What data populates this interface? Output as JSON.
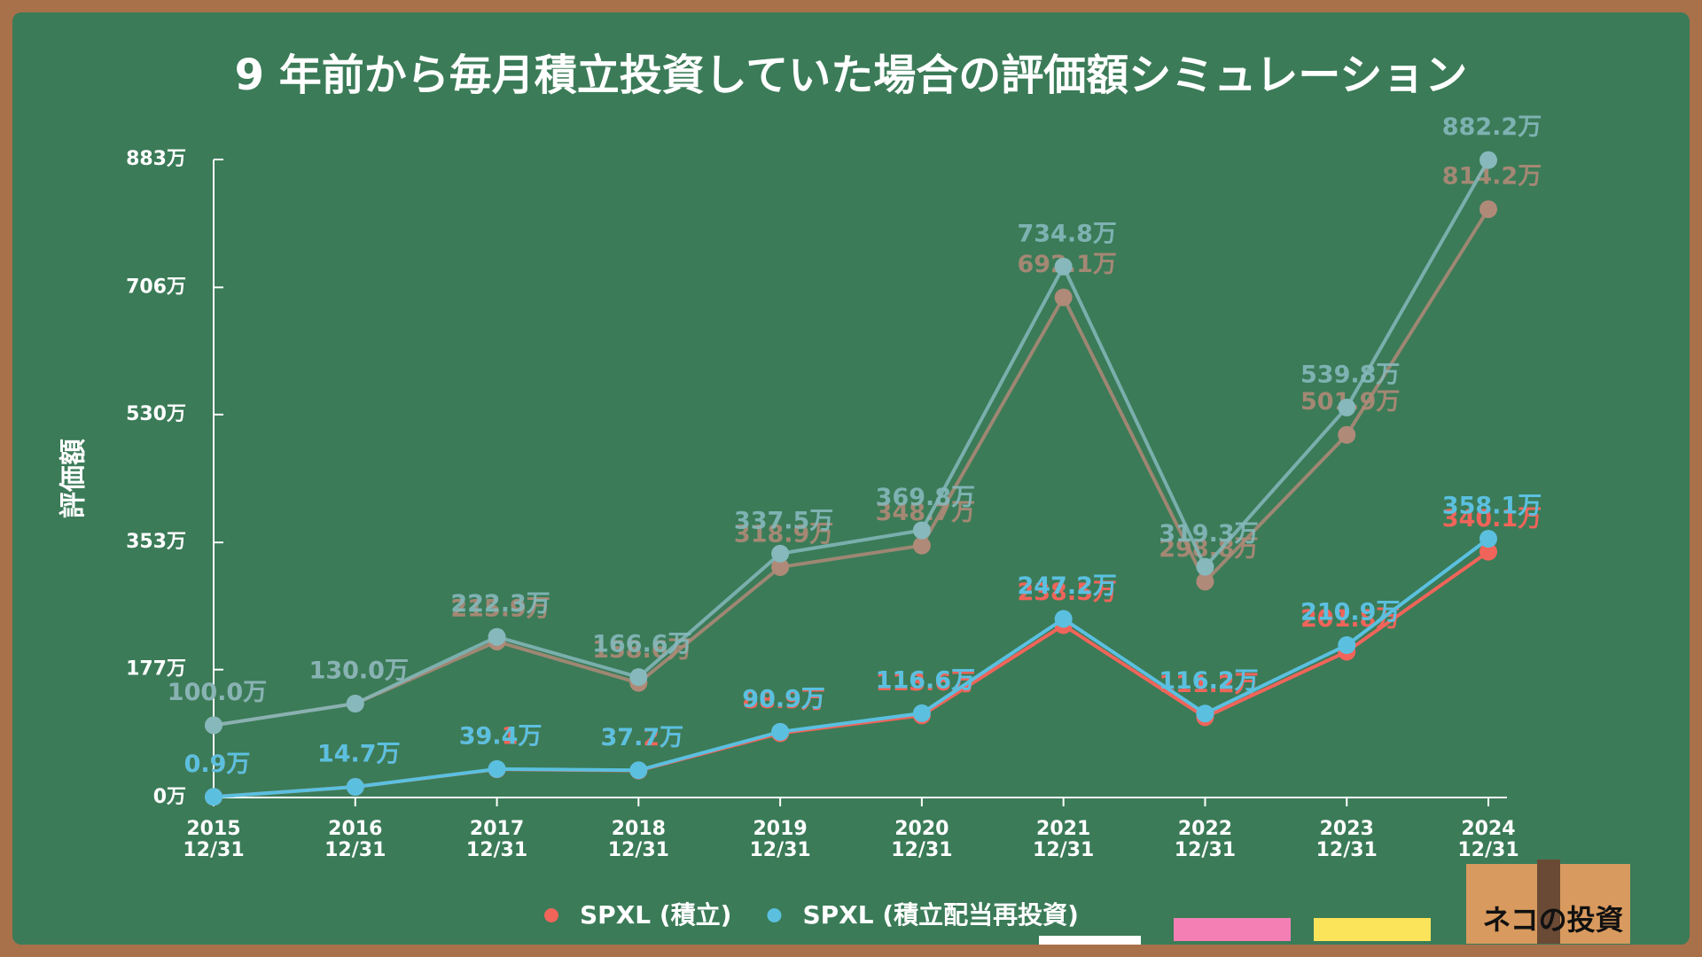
{
  "chart_data": {
    "type": "line",
    "title": "9 年前から毎月積立投資していた場合の評価額シミュレーション",
    "y_label": "評価額",
    "categories": [
      "2015\n12/31",
      "2016\n12/31",
      "2017\n12/31",
      "2018\n12/31",
      "2019\n12/31",
      "2020\n12/31",
      "2021\n12/31",
      "2022\n12/31",
      "2023\n12/31",
      "2024\n12/31"
    ],
    "ylim": [
      0,
      883
    ],
    "yticks": [
      {
        "value": 0,
        "label": "0万"
      },
      {
        "value": 177,
        "label": "177万"
      },
      {
        "value": 353,
        "label": "353万"
      },
      {
        "value": 530,
        "label": "530万"
      },
      {
        "value": 706,
        "label": "706万"
      },
      {
        "value": 883,
        "label": "883万"
      }
    ],
    "series": [
      {
        "color": "#b08a78",
        "values": [
          100.0,
          130.0,
          215.9,
          158.6,
          318.9,
          348.7,
          692.1,
          298.8,
          501.9,
          814.2
        ],
        "value_labels": [
          "100.0万",
          "130.0万",
          "215.9万",
          "158.6万",
          "318.9万",
          "348.7万",
          "692.1万",
          "298.8万",
          "501.9万",
          "814.2万"
        ]
      },
      {
        "color": "#86b8bc",
        "values": [
          100.0,
          130.0,
          222.3,
          166.6,
          337.5,
          369.8,
          734.8,
          319.3,
          539.8,
          882.2
        ],
        "value_labels": [
          "100.0万",
          "130.0万",
          "222.3万",
          "166.6万",
          "337.5万",
          "369.8万",
          "734.8万",
          "319.3万",
          "539.8万",
          "882.2万"
        ]
      },
      {
        "name": "SPXL (積立)",
        "color": "#f0645a",
        "values": [
          0.9,
          14.7,
          39.1,
          37.2,
          88.9,
          113.6,
          238.5,
          111.2,
          201.8,
          340.1
        ],
        "value_labels": [
          "0.9万",
          "14.7万",
          "39.1万",
          "37.2万",
          "88.9万",
          "113.6万",
          "238.5万",
          "111.2万",
          "201.8万",
          "340.1万"
        ]
      },
      {
        "name": "SPXL (積立配当再投資)",
        "color": "#5bc0e0",
        "values": [
          0.9,
          14.7,
          39.4,
          37.7,
          90.9,
          116.6,
          247.2,
          116.2,
          210.9,
          358.1
        ],
        "value_labels": [
          "0.9万",
          "14.7万",
          "39.4万",
          "37.7万",
          "90.9万",
          "116.6万",
          "247.2万",
          "116.2万",
          "210.9万",
          "358.1万"
        ]
      }
    ]
  },
  "brand": "ネコの投資"
}
